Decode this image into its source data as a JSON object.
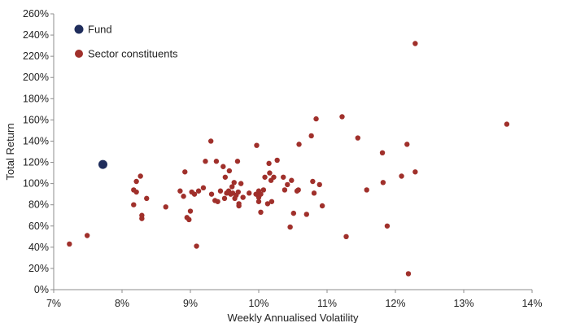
{
  "chart_data": {
    "type": "scatter",
    "xlabel": "Weekly Annualised Volatility",
    "ylabel": "Total Return",
    "xlim": [
      7,
      14
    ],
    "ylim": [
      0,
      260
    ],
    "x_ticks": [
      7,
      8,
      9,
      10,
      11,
      12,
      13,
      14
    ],
    "y_ticks": [
      0,
      20,
      40,
      60,
      80,
      100,
      120,
      140,
      160,
      180,
      200,
      220,
      240,
      260
    ],
    "x_tick_labels": [
      "7%",
      "8%",
      "9%",
      "10%",
      "11%",
      "12%",
      "13%",
      "14%"
    ],
    "y_tick_labels": [
      "0%",
      "20%",
      "40%",
      "60%",
      "80%",
      "100%",
      "120%",
      "140%",
      "160%",
      "180%",
      "200%",
      "220%",
      "240%",
      "260%"
    ],
    "grid": false,
    "legend_position": "top-left",
    "series": [
      {
        "name": "Fund",
        "color": "#1f2d5c",
        "points": [
          [
            7.72,
            118
          ]
        ]
      },
      {
        "name": "Sector constituents",
        "color": "#a0302b",
        "points": [
          [
            7.23,
            43
          ],
          [
            7.49,
            51
          ],
          [
            8.17,
            94
          ],
          [
            8.17,
            80
          ],
          [
            8.21,
            92
          ],
          [
            8.21,
            102
          ],
          [
            8.27,
            107
          ],
          [
            8.29,
            70
          ],
          [
            8.29,
            67
          ],
          [
            8.36,
            86
          ],
          [
            8.64,
            78
          ],
          [
            8.85,
            93
          ],
          [
            8.9,
            88
          ],
          [
            8.92,
            111
          ],
          [
            8.95,
            68
          ],
          [
            8.98,
            66
          ],
          [
            9.0,
            74
          ],
          [
            9.02,
            92
          ],
          [
            9.06,
            90
          ],
          [
            9.09,
            41
          ],
          [
            9.12,
            93
          ],
          [
            9.19,
            96
          ],
          [
            9.22,
            121
          ],
          [
            9.3,
            140
          ],
          [
            9.31,
            90
          ],
          [
            9.36,
            84
          ],
          [
            9.38,
            121
          ],
          [
            9.4,
            83
          ],
          [
            9.44,
            93
          ],
          [
            9.48,
            116
          ],
          [
            9.5,
            86
          ],
          [
            9.51,
            106
          ],
          [
            9.53,
            91
          ],
          [
            9.56,
            93
          ],
          [
            9.57,
            112
          ],
          [
            9.59,
            90
          ],
          [
            9.61,
            97
          ],
          [
            9.62,
            91
          ],
          [
            9.64,
            101
          ],
          [
            9.65,
            86
          ],
          [
            9.67,
            89
          ],
          [
            9.69,
            121
          ],
          [
            9.7,
            92
          ],
          [
            9.71,
            81
          ],
          [
            9.71,
            79
          ],
          [
            9.74,
            100
          ],
          [
            9.77,
            87
          ],
          [
            9.86,
            91
          ],
          [
            9.96,
            90
          ],
          [
            9.97,
            136
          ],
          [
            10.0,
            87
          ],
          [
            10.0,
            93
          ],
          [
            10.0,
            83
          ],
          [
            10.03,
            73
          ],
          [
            10.03,
            90
          ],
          [
            10.07,
            94
          ],
          [
            10.09,
            106
          ],
          [
            10.13,
            81
          ],
          [
            10.15,
            119
          ],
          [
            10.16,
            110
          ],
          [
            10.18,
            103
          ],
          [
            10.19,
            83
          ],
          [
            10.22,
            106
          ],
          [
            10.27,
            122
          ],
          [
            10.36,
            106
          ],
          [
            10.38,
            94
          ],
          [
            10.42,
            99
          ],
          [
            10.46,
            59
          ],
          [
            10.48,
            103
          ],
          [
            10.51,
            72
          ],
          [
            10.56,
            93
          ],
          [
            10.58,
            94
          ],
          [
            10.59,
            137
          ],
          [
            10.7,
            71
          ],
          [
            10.77,
            145
          ],
          [
            10.79,
            102
          ],
          [
            10.81,
            91
          ],
          [
            10.84,
            161
          ],
          [
            10.89,
            99
          ],
          [
            10.93,
            79
          ],
          [
            11.22,
            163
          ],
          [
            11.28,
            50
          ],
          [
            11.45,
            143
          ],
          [
            11.58,
            94
          ],
          [
            11.81,
            129
          ],
          [
            11.82,
            101
          ],
          [
            11.88,
            60
          ],
          [
            12.09,
            107
          ],
          [
            12.17,
            137
          ],
          [
            12.19,
            15
          ],
          [
            12.29,
            111
          ],
          [
            12.29,
            232
          ],
          [
            13.63,
            156
          ]
        ]
      }
    ]
  }
}
